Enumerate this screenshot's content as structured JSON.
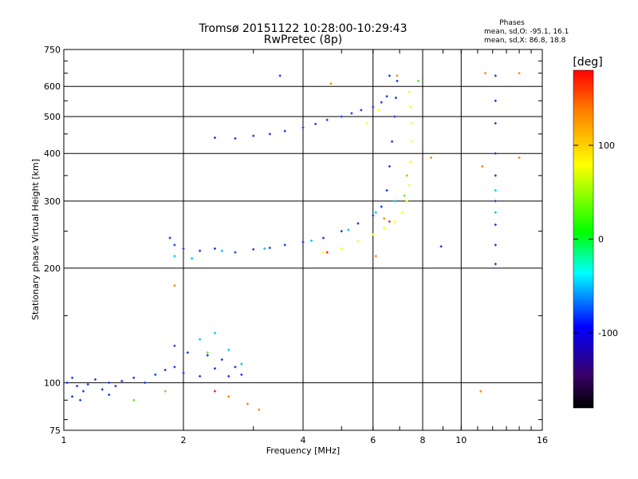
{
  "chart_data": {
    "type": "scatter",
    "title": "Tromsø 20151122 10:28:00-10:29:43",
    "subtitle": "RwPretec (8p)",
    "xlabel": "Frequency [MHz]",
    "ylabel": "Stationary phase Virtual Height [km]",
    "x_scale": "log",
    "y_scale": "log",
    "xlim": [
      1,
      16
    ],
    "ylim": [
      75,
      750
    ],
    "x_ticks": [
      1,
      2,
      4,
      6,
      8,
      10,
      16
    ],
    "y_ticks": [
      75,
      100,
      200,
      300,
      400,
      500,
      600,
      750
    ],
    "grid": true,
    "phase_box": {
      "title": "Phases",
      "line1": "mean, sd,O:  -95.1, 16.1",
      "line2": "mean, sd,X:   86.8, 18.8"
    },
    "colorbar": {
      "label": "[deg]",
      "range": [
        -180,
        180
      ],
      "ticks": [
        100,
        0,
        -100
      ],
      "colors": [
        "#ff0000",
        "#ff7f00",
        "#ffff00",
        "#00ff00",
        "#00ffff",
        "#0000ff",
        "#3a006a",
        "#000000"
      ]
    },
    "series": [
      {
        "color": "#1e3ce6",
        "points": [
          [
            1.02,
            100
          ],
          [
            1.05,
            103
          ],
          [
            1.08,
            98
          ],
          [
            1.12,
            95
          ],
          [
            1.15,
            99
          ],
          [
            1.2,
            102
          ],
          [
            1.25,
            96
          ],
          [
            1.3,
            100
          ],
          [
            1.35,
            98
          ],
          [
            1.4,
            101
          ],
          [
            1.5,
            103
          ],
          [
            1.6,
            100
          ],
          [
            1.7,
            105
          ],
          [
            1.8,
            108
          ],
          [
            1.9,
            110
          ],
          [
            2.0,
            106
          ],
          [
            2.2,
            104
          ],
          [
            2.4,
            109
          ],
          [
            2.6,
            104
          ],
          [
            2.8,
            105
          ],
          [
            1.05,
            92
          ],
          [
            1.1,
            90
          ],
          [
            1.3,
            93
          ],
          [
            1.9,
            125
          ],
          [
            2.05,
            120
          ],
          [
            2.3,
            118
          ],
          [
            2.5,
            115
          ],
          [
            2.7,
            110
          ],
          [
            1.85,
            240
          ],
          [
            1.9,
            230
          ],
          [
            2.0,
            225
          ],
          [
            2.2,
            222
          ],
          [
            2.4,
            225
          ],
          [
            2.7,
            220
          ],
          [
            3.0,
            224
          ],
          [
            3.3,
            226
          ],
          [
            3.6,
            230
          ],
          [
            4.0,
            234
          ],
          [
            4.5,
            240
          ],
          [
            5.0,
            250
          ],
          [
            5.5,
            262
          ],
          [
            6.0,
            275
          ],
          [
            6.3,
            290
          ],
          [
            6.5,
            320
          ],
          [
            6.6,
            370
          ],
          [
            6.7,
            430
          ],
          [
            6.8,
            500
          ],
          [
            6.85,
            560
          ],
          [
            6.9,
            620
          ],
          [
            6.6,
            640
          ],
          [
            2.4,
            440
          ],
          [
            2.7,
            438
          ],
          [
            3.0,
            445
          ],
          [
            3.3,
            450
          ],
          [
            3.6,
            458
          ],
          [
            4.0,
            468
          ],
          [
            4.3,
            478
          ],
          [
            4.6,
            490
          ],
          [
            5.0,
            500
          ],
          [
            5.3,
            510
          ],
          [
            5.6,
            520
          ],
          [
            6.0,
            530
          ],
          [
            6.3,
            545
          ],
          [
            6.5,
            565
          ],
          [
            3.5,
            640
          ],
          [
            12.2,
            640
          ],
          [
            12.2,
            550
          ],
          [
            12.2,
            480
          ],
          [
            12.2,
            400
          ],
          [
            12.2,
            350
          ],
          [
            12.2,
            300
          ],
          [
            12.2,
            260
          ],
          [
            12.2,
            230
          ],
          [
            12.2,
            205
          ],
          [
            8.9,
            228
          ]
        ]
      },
      {
        "color": "#00c8ff",
        "points": [
          [
            1.9,
            215
          ],
          [
            2.1,
            212
          ],
          [
            2.5,
            222
          ],
          [
            3.2,
            225
          ],
          [
            4.2,
            236
          ],
          [
            5.2,
            252
          ],
          [
            6.1,
            280
          ],
          [
            6.8,
            300
          ],
          [
            2.2,
            130
          ],
          [
            2.4,
            135
          ],
          [
            2.6,
            122
          ],
          [
            2.8,
            112
          ],
          [
            12.2,
            320
          ],
          [
            12.2,
            280
          ]
        ]
      },
      {
        "color": "#ffff00",
        "points": [
          [
            4.5,
            220
          ],
          [
            5.0,
            225
          ],
          [
            5.5,
            235
          ],
          [
            6.0,
            245
          ],
          [
            6.4,
            255
          ],
          [
            6.8,
            265
          ],
          [
            7.1,
            280
          ],
          [
            7.3,
            300
          ],
          [
            7.4,
            330
          ],
          [
            7.45,
            380
          ],
          [
            7.5,
            430
          ],
          [
            7.5,
            480
          ],
          [
            7.45,
            530
          ],
          [
            7.4,
            580
          ],
          [
            5.8,
            480
          ],
          [
            6.2,
            520
          ]
        ]
      },
      {
        "color": "#6ee61e",
        "points": [
          [
            1.5,
            90
          ],
          [
            1.8,
            95
          ],
          [
            2.3,
            120
          ],
          [
            7.2,
            310
          ],
          [
            7.3,
            350
          ],
          [
            7.8,
            620
          ]
        ]
      },
      {
        "color": "#ff8c00",
        "points": [
          [
            2.6,
            92
          ],
          [
            2.9,
            88
          ],
          [
            3.1,
            85
          ],
          [
            4.7,
            610
          ],
          [
            6.9,
            640
          ],
          [
            11.5,
            650
          ],
          [
            14.0,
            650
          ],
          [
            14.0,
            390
          ],
          [
            11.3,
            370
          ],
          [
            11.2,
            95
          ],
          [
            1.9,
            180
          ],
          [
            6.4,
            270
          ],
          [
            6.1,
            215
          ],
          [
            8.4,
            390
          ]
        ]
      },
      {
        "color": "#ff2020",
        "points": [
          [
            2.4,
            95
          ],
          [
            4.6,
            220
          ],
          [
            6.6,
            265
          ]
        ]
      }
    ]
  }
}
